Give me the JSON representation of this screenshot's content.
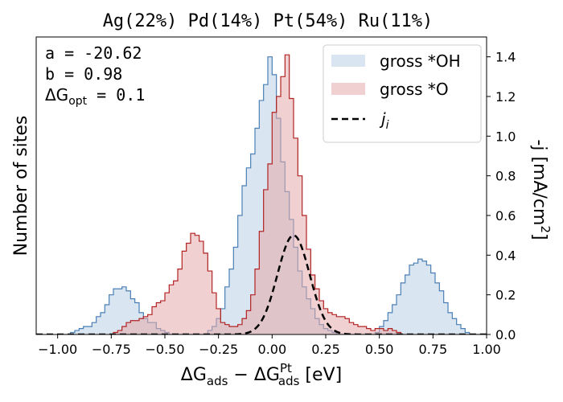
{
  "chart_data": {
    "type": "histogram",
    "title": "Ag(22%) Pd(14%) Pt(54%) Ru(11%)",
    "xlabel": "ΔG_ads − ΔG_ads^Pt [eV]",
    "xlabel_parts": {
      "a": "ΔG",
      "a_sub": "ads",
      "minus": " − ΔG",
      "b_sup": "Pt",
      "b_sub": "ads",
      "unit": " [eV]"
    },
    "ylabel_left": "Number of sites",
    "ylabel_right": "-j [mA/cm²]",
    "ylabel_right_parts": {
      "main": "-j [mA/cm",
      "sup": "2",
      "close": "]"
    },
    "xlim": [
      -1.1,
      1.0
    ],
    "xticks": [
      -1.0,
      -0.75,
      -0.5,
      -0.25,
      0.0,
      0.25,
      0.5,
      0.75,
      1.0
    ],
    "xtick_labels": [
      "−1.00",
      "−0.75",
      "−0.50",
      "−0.25",
      "0.00",
      "0.25",
      "0.50",
      "0.75",
      "1.00"
    ],
    "right_ylim": [
      0.0,
      1.5
    ],
    "right_yticks": [
      0.0,
      0.2,
      0.4,
      0.6,
      0.8,
      1.0,
      1.2,
      1.4
    ],
    "right_ytick_labels": [
      "0.0",
      "0.2",
      "0.4",
      "0.6",
      "0.8",
      "1.0",
      "1.2",
      "1.4"
    ],
    "left_ylim_relative": [
      0,
      1.5
    ],
    "annotations": {
      "a": "a = -20.62",
      "b": "b = 0.98",
      "dg_main": "ΔG",
      "dg_sub": "opt",
      "dg_value": " = 0.1"
    },
    "legend": {
      "placement": "top-right",
      "entries": [
        {
          "label": "gross *OH",
          "color": "#4a7fb5"
        },
        {
          "label": "gross *O",
          "color": "#b22222"
        },
        {
          "label_main": "j",
          "label_sub": "i",
          "color": "#000000",
          "style": "dashed"
        }
      ]
    },
    "series": [
      {
        "name": "gross *OH",
        "color": "#4a7fb5",
        "fill": "#b9cfe5",
        "bin_width": 0.02,
        "bins": [
          [
            -1.0,
            0.0
          ],
          [
            -0.98,
            0.0
          ],
          [
            -0.96,
            0.0
          ],
          [
            -0.94,
            0.01
          ],
          [
            -0.92,
            0.02
          ],
          [
            -0.9,
            0.03
          ],
          [
            -0.88,
            0.04
          ],
          [
            -0.86,
            0.04
          ],
          [
            -0.84,
            0.06
          ],
          [
            -0.82,
            0.09
          ],
          [
            -0.8,
            0.11
          ],
          [
            -0.78,
            0.15
          ],
          [
            -0.76,
            0.2
          ],
          [
            -0.74,
            0.23
          ],
          [
            -0.72,
            0.23
          ],
          [
            -0.7,
            0.24
          ],
          [
            -0.68,
            0.22
          ],
          [
            -0.66,
            0.18
          ],
          [
            -0.64,
            0.16
          ],
          [
            -0.62,
            0.11
          ],
          [
            -0.6,
            0.08
          ],
          [
            -0.58,
            0.06
          ],
          [
            -0.56,
            0.06
          ],
          [
            -0.54,
            0.03
          ],
          [
            -0.52,
            0.02
          ],
          [
            -0.5,
            0.01
          ],
          [
            -0.48,
            0.0
          ],
          [
            -0.46,
            0.0
          ],
          [
            -0.44,
            0.0
          ],
          [
            -0.42,
            0.0
          ],
          [
            -0.4,
            0.0
          ],
          [
            -0.38,
            0.0
          ],
          [
            -0.36,
            0.0
          ],
          [
            -0.34,
            0.0
          ],
          [
            -0.32,
            0.0
          ],
          [
            -0.3,
            0.02
          ],
          [
            -0.28,
            0.04
          ],
          [
            -0.26,
            0.08
          ],
          [
            -0.24,
            0.13
          ],
          [
            -0.22,
            0.24
          ],
          [
            -0.2,
            0.33
          ],
          [
            -0.18,
            0.44
          ],
          [
            -0.16,
            0.6
          ],
          [
            -0.14,
            0.75
          ],
          [
            -0.12,
            0.84
          ],
          [
            -0.1,
            0.91
          ],
          [
            -0.08,
            1.04
          ],
          [
            -0.06,
            1.18
          ],
          [
            -0.04,
            1.26
          ],
          [
            -0.02,
            1.4
          ],
          [
            0.0,
            1.31
          ],
          [
            0.02,
            1.09
          ],
          [
            0.04,
            0.87
          ],
          [
            0.06,
            0.72
          ],
          [
            0.08,
            0.58
          ],
          [
            0.1,
            0.44
          ],
          [
            0.12,
            0.32
          ],
          [
            0.14,
            0.24
          ],
          [
            0.16,
            0.18
          ],
          [
            0.18,
            0.13
          ],
          [
            0.2,
            0.08
          ],
          [
            0.22,
            0.05
          ],
          [
            0.24,
            0.03
          ],
          [
            0.26,
            0.02
          ],
          [
            0.28,
            0.01
          ],
          [
            0.3,
            0.0
          ],
          [
            0.32,
            0.0
          ],
          [
            0.34,
            0.0
          ],
          [
            0.36,
            0.0
          ],
          [
            0.38,
            0.0
          ],
          [
            0.4,
            0.0
          ],
          [
            0.42,
            0.0
          ],
          [
            0.44,
            0.0
          ],
          [
            0.46,
            0.0
          ],
          [
            0.48,
            0.01
          ],
          [
            0.5,
            0.04
          ],
          [
            0.52,
            0.07
          ],
          [
            0.54,
            0.11
          ],
          [
            0.56,
            0.15
          ],
          [
            0.58,
            0.2
          ],
          [
            0.6,
            0.26
          ],
          [
            0.62,
            0.3
          ],
          [
            0.64,
            0.35
          ],
          [
            0.66,
            0.36
          ],
          [
            0.68,
            0.38
          ],
          [
            0.7,
            0.37
          ],
          [
            0.72,
            0.35
          ],
          [
            0.74,
            0.31
          ],
          [
            0.76,
            0.26
          ],
          [
            0.78,
            0.22
          ],
          [
            0.8,
            0.16
          ],
          [
            0.82,
            0.11
          ],
          [
            0.84,
            0.08
          ],
          [
            0.86,
            0.05
          ],
          [
            0.88,
            0.03
          ],
          [
            0.9,
            0.01
          ],
          [
            0.92,
            0.0
          ],
          [
            0.94,
            0.0
          ],
          [
            0.96,
            0.0
          ],
          [
            0.98,
            0.0
          ]
        ]
      },
      {
        "name": "gross *O",
        "color": "#b22222",
        "fill": "#e3a9a9",
        "bin_width": 0.02,
        "bins": [
          [
            -0.74,
            0.01
          ],
          [
            -0.72,
            0.02
          ],
          [
            -0.7,
            0.04
          ],
          [
            -0.68,
            0.06
          ],
          [
            -0.66,
            0.07
          ],
          [
            -0.64,
            0.07
          ],
          [
            -0.62,
            0.08
          ],
          [
            -0.6,
            0.09
          ],
          [
            -0.58,
            0.1
          ],
          [
            -0.56,
            0.14
          ],
          [
            -0.54,
            0.16
          ],
          [
            -0.52,
            0.17
          ],
          [
            -0.5,
            0.21
          ],
          [
            -0.48,
            0.25
          ],
          [
            -0.46,
            0.27
          ],
          [
            -0.44,
            0.33
          ],
          [
            -0.42,
            0.42
          ],
          [
            -0.4,
            0.46
          ],
          [
            -0.38,
            0.51
          ],
          [
            -0.36,
            0.5
          ],
          [
            -0.34,
            0.47
          ],
          [
            -0.32,
            0.41
          ],
          [
            -0.3,
            0.32
          ],
          [
            -0.28,
            0.21
          ],
          [
            -0.26,
            0.13
          ],
          [
            -0.24,
            0.06
          ],
          [
            -0.22,
            0.05
          ],
          [
            -0.2,
            0.04
          ],
          [
            -0.18,
            0.04
          ],
          [
            -0.16,
            0.05
          ],
          [
            -0.14,
            0.08
          ],
          [
            -0.12,
            0.12
          ],
          [
            -0.1,
            0.2
          ],
          [
            -0.08,
            0.33
          ],
          [
            -0.06,
            0.52
          ],
          [
            -0.04,
            0.73
          ],
          [
            -0.02,
            0.86
          ],
          [
            0.0,
            1.12
          ],
          [
            0.02,
            1.2
          ],
          [
            0.04,
            1.3
          ],
          [
            0.06,
            1.41
          ],
          [
            0.08,
            1.19
          ],
          [
            0.1,
            0.99
          ],
          [
            0.12,
            0.8
          ],
          [
            0.14,
            0.6
          ],
          [
            0.16,
            0.43
          ],
          [
            0.18,
            0.3
          ],
          [
            0.2,
            0.23
          ],
          [
            0.22,
            0.17
          ],
          [
            0.24,
            0.13
          ],
          [
            0.26,
            0.11
          ],
          [
            0.28,
            0.1
          ],
          [
            0.3,
            0.09
          ],
          [
            0.32,
            0.09
          ],
          [
            0.34,
            0.08
          ],
          [
            0.36,
            0.06
          ],
          [
            0.38,
            0.05
          ],
          [
            0.4,
            0.04
          ],
          [
            0.42,
            0.04
          ],
          [
            0.44,
            0.03
          ],
          [
            0.46,
            0.02
          ],
          [
            0.48,
            0.03
          ],
          [
            0.5,
            0.03
          ],
          [
            0.52,
            0.02
          ],
          [
            0.54,
            0.03
          ],
          [
            0.56,
            0.02
          ],
          [
            0.58,
            0.01
          ],
          [
            0.6,
            0.0
          ]
        ]
      }
    ],
    "curve": {
      "name": "j_i",
      "color": "#000000",
      "style": "dashed",
      "center": 0.1,
      "peak": 0.5,
      "sigma": 0.075
    }
  }
}
